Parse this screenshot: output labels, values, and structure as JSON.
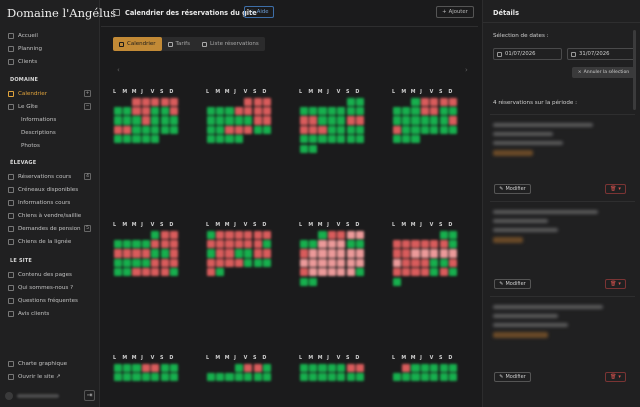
{
  "brand": "Domaine l'Angélus",
  "sidebar": {
    "top": [
      {
        "label": "Accueil",
        "icon": "home-icon"
      },
      {
        "label": "Planning",
        "icon": "calendar-icon"
      },
      {
        "label": "Clients",
        "icon": "users-icon"
      }
    ],
    "sections": [
      {
        "label": "DOMAINE"
      },
      {
        "label": "ÉLEVAGE"
      },
      {
        "label": "LE SITE"
      }
    ],
    "domaine": [
      {
        "label": "Calendrier",
        "icon": "calendar-icon",
        "badge": "+"
      },
      {
        "label": "Le Gîte",
        "icon": "house-icon",
        "badge": "−"
      },
      {
        "label": "Informations"
      },
      {
        "label": "Descriptions"
      },
      {
        "label": "Photos"
      }
    ],
    "elevage": [
      {
        "label": "Réservations cours",
        "icon": "calendar-icon",
        "badge": "4"
      },
      {
        "label": "Créneaux disponibles",
        "icon": "clock-icon"
      },
      {
        "label": "Informations cours",
        "icon": "info-icon"
      },
      {
        "label": "Chiens à vendre/saillie",
        "icon": "dog-icon"
      },
      {
        "label": "Demandes de pension",
        "icon": "mail-icon",
        "badge": "5"
      },
      {
        "label": "Chiens de la lignée",
        "icon": "tree-icon"
      }
    ],
    "site": [
      {
        "label": "Contenu des pages",
        "icon": "file-icon"
      },
      {
        "label": "Qui sommes-nous ?",
        "icon": "info-icon"
      },
      {
        "label": "Questions fréquentes",
        "icon": "help-icon"
      },
      {
        "label": "Avis clients",
        "icon": "star-icon"
      }
    ],
    "bottom": [
      {
        "label": "Charte graphique",
        "icon": "palette-icon"
      },
      {
        "label": "Ouvrir le site ↗",
        "icon": "external-icon"
      }
    ]
  },
  "toolbar": {
    "title": "Calendrier des réservations du gîte",
    "help": "Aide",
    "add": "Ajouter"
  },
  "tabs": [
    "Calendrier",
    "Tarifs",
    "Liste réservations"
  ],
  "calendar": {
    "weekdays": [
      "L",
      "M",
      "M",
      "J",
      "V",
      "S",
      "D"
    ]
  },
  "details": {
    "title": "Détails",
    "date_label": "Sélection de dates :",
    "date_from": "01/07/2026",
    "date_to": "31/07/2026",
    "cancel_selection": "Annuler la sélection",
    "reservations_count": "4 réservations sur la période :",
    "modify": "Modifier"
  }
}
